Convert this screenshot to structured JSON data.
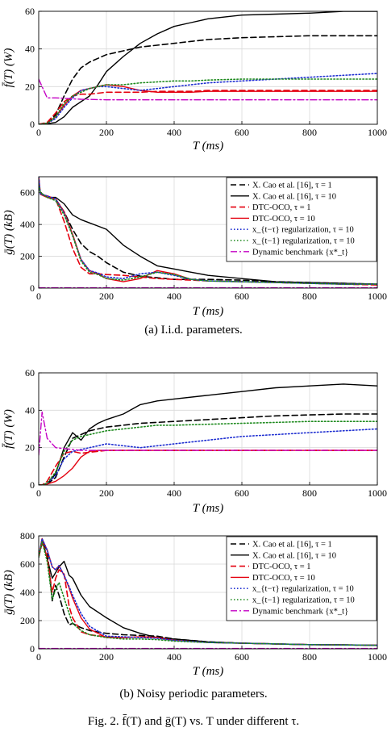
{
  "figure": {
    "sub_caption_a": "(a) I.i.d. parameters.",
    "sub_caption_b": "(b) Noisy periodic parameters.",
    "caption": "Fig. 2.  f̄(T) and ḡ(T) vs. T under different τ."
  },
  "legend_labels": [
    "X. Cao et al. [16], τ = 1",
    "X. Cao et al. [16], τ = 10",
    "DTC-OCO, τ = 1",
    "DTC-OCO, τ = 10",
    "x_{t−τ} regularization, τ = 10",
    "x_{t−1} regularization, τ = 10",
    "Dynamic benchmark {x*_t}"
  ],
  "series_styles": [
    {
      "color": "#000000",
      "dash": "7,4",
      "width": 1.6
    },
    {
      "color": "#000000",
      "dash": "",
      "width": 1.4
    },
    {
      "color": "#e4000f",
      "dash": "7,4",
      "width": 1.6
    },
    {
      "color": "#e4000f",
      "dash": "",
      "width": 1.4
    },
    {
      "color": "#1f2fd1",
      "dash": "1.5,2.5",
      "width": 1.6
    },
    {
      "color": "#1e8a1e",
      "dash": "1.5,2.5",
      "width": 1.6
    },
    {
      "color": "#c400c4",
      "dash": "8,3,2,3",
      "width": 1.4
    }
  ],
  "chart_data": [
    {
      "id": "a-f",
      "type": "line",
      "xlabel": "T (ms)",
      "ylabel": "f̄(T) (W)",
      "xlim": [
        0,
        1000
      ],
      "ylim": [
        0,
        60
      ],
      "xticks": [
        "0",
        "200",
        "400",
        "600",
        "800",
        "1000"
      ],
      "yticks": [
        "0",
        "20",
        "40",
        "60"
      ],
      "grid": true,
      "legend": "none",
      "x": [
        0,
        25,
        50,
        75,
        100,
        125,
        150,
        175,
        200,
        250,
        300,
        350,
        400,
        450,
        500,
        600,
        700,
        800,
        900,
        1000
      ],
      "series": [
        {
          "values": [
            0,
            0.5,
            5,
            15,
            24,
            30,
            33,
            35,
            37,
            39,
            41,
            42,
            43,
            44,
            45,
            46,
            46.5,
            47,
            47,
            47
          ]
        },
        {
          "values": [
            0,
            0.3,
            1,
            4,
            9,
            12,
            15,
            21,
            28,
            36,
            43,
            48,
            52,
            54,
            56,
            58,
            58.5,
            59,
            60,
            60
          ]
        },
        {
          "values": [
            0,
            1,
            6,
            12,
            15,
            16,
            16,
            16.5,
            17,
            17,
            17,
            17.5,
            17.5,
            17.5,
            18,
            18,
            18,
            18,
            18,
            18
          ]
        },
        {
          "values": [
            0,
            0.5,
            4,
            10,
            15,
            18,
            19,
            20,
            21,
            20,
            18,
            17,
            17,
            17,
            17.5,
            17.5,
            17.5,
            17.5,
            17.5,
            17.5
          ]
        },
        {
          "values": [
            0,
            0.5,
            3,
            9,
            14,
            18,
            19,
            20,
            20,
            19,
            18,
            19,
            20,
            21,
            22,
            23,
            24,
            25,
            26,
            27
          ]
        },
        {
          "values": [
            0,
            0.5,
            4,
            11,
            15,
            17,
            19,
            20,
            21,
            21,
            22,
            22.5,
            23,
            23,
            23.5,
            24,
            24,
            24,
            24,
            24
          ]
        },
        {
          "values": [
            24,
            14,
            14,
            13.8,
            13.5,
            13.3,
            13.2,
            13.1,
            13,
            13,
            13,
            13,
            13,
            13,
            13,
            13,
            13,
            13,
            13,
            13
          ]
        }
      ]
    },
    {
      "id": "a-g",
      "type": "line",
      "xlabel": "T (ms)",
      "ylabel": "ḡ(T) (kB)",
      "xlim": [
        0,
        1000
      ],
      "ylim": [
        0,
        700
      ],
      "xticks": [
        "0",
        "200",
        "400",
        "600",
        "800",
        "1000"
      ],
      "yticks": [
        "0",
        "200",
        "400",
        "600"
      ],
      "grid": true,
      "legend": "top-right",
      "x": [
        0,
        5,
        25,
        50,
        75,
        100,
        125,
        150,
        175,
        200,
        250,
        300,
        350,
        400,
        450,
        500,
        600,
        700,
        800,
        900,
        1000
      ],
      "series": [
        {
          "values": [
            650,
            600,
            570,
            560,
            480,
            370,
            280,
            230,
            200,
            160,
            100,
            75,
            65,
            55,
            55,
            55,
            50,
            40,
            35,
            30,
            25
          ]
        },
        {
          "values": [
            650,
            600,
            570,
            570,
            530,
            460,
            430,
            410,
            390,
            370,
            270,
            200,
            140,
            120,
            100,
            80,
            60,
            40,
            35,
            30,
            25
          ]
        },
        {
          "values": [
            700,
            590,
            570,
            560,
            420,
            250,
            130,
            90,
            90,
            85,
            80,
            70,
            60,
            55,
            50,
            45,
            40,
            35,
            30,
            25,
            20
          ]
        },
        {
          "values": [
            700,
            590,
            580,
            560,
            480,
            340,
            180,
            110,
            90,
            60,
            40,
            60,
            110,
            90,
            55,
            45,
            40,
            35,
            30,
            25,
            25
          ]
        },
        {
          "values": [
            700,
            590,
            580,
            560,
            470,
            330,
            180,
            110,
            95,
            70,
            60,
            90,
            100,
            80,
            55,
            45,
            40,
            35,
            30,
            25,
            25
          ]
        },
        {
          "values": [
            650,
            600,
            570,
            550,
            460,
            330,
            170,
            100,
            85,
            60,
            50,
            70,
            100,
            85,
            55,
            45,
            40,
            35,
            30,
            25,
            25
          ]
        },
        {
          "values": [
            2,
            2,
            2,
            2,
            2,
            2,
            2,
            2,
            2,
            2,
            2,
            2,
            2,
            2,
            2,
            2,
            2,
            2,
            2,
            2,
            2
          ]
        }
      ]
    },
    {
      "id": "b-f",
      "type": "line",
      "xlabel": "T (ms)",
      "ylabel": "f̄(T) (W)",
      "xlim": [
        0,
        1000
      ],
      "ylim": [
        0,
        60
      ],
      "xticks": [
        "0",
        "200",
        "400",
        "600",
        "800",
        "1000"
      ],
      "yticks": [
        "0",
        "20",
        "40",
        "60"
      ],
      "grid": true,
      "legend": "none",
      "x": [
        0,
        10,
        25,
        50,
        75,
        100,
        125,
        150,
        175,
        200,
        250,
        300,
        350,
        400,
        500,
        600,
        700,
        800,
        900,
        1000
      ],
      "series": [
        {
          "values": [
            0,
            0,
            0.5,
            4,
            15,
            25,
            27,
            29,
            30,
            31,
            32,
            33,
            33.5,
            34,
            35,
            36,
            37,
            37.5,
            38,
            38
          ]
        },
        {
          "values": [
            0,
            0,
            0.5,
            6,
            20,
            28,
            24,
            30,
            33,
            35,
            38,
            43,
            45,
            46,
            48,
            50,
            52,
            53,
            54,
            53
          ]
        },
        {
          "values": [
            0,
            0,
            2,
            10,
            17,
            18,
            17,
            17.5,
            18,
            18.5,
            18.5,
            18.5,
            18.5,
            18.5,
            18.5,
            18.5,
            18.5,
            18.5,
            18.5,
            18.5
          ]
        },
        {
          "values": [
            0,
            0,
            0.5,
            2,
            5,
            9,
            15,
            18,
            18.5,
            18.5,
            18.5,
            18.5,
            18.5,
            18.5,
            18.5,
            18.5,
            18.5,
            18.5,
            18.5,
            18.5
          ]
        },
        {
          "values": [
            0,
            0,
            1,
            5,
            14,
            18,
            19,
            20,
            21,
            22,
            21,
            20,
            21,
            22,
            24,
            26,
            27,
            28,
            29,
            30
          ]
        },
        {
          "values": [
            0,
            0,
            1,
            7,
            18,
            24,
            26,
            27,
            28,
            29,
            30,
            31,
            32,
            32,
            32.5,
            33,
            33.5,
            34,
            34,
            34
          ]
        },
        {
          "values": [
            16,
            39,
            25,
            20,
            19.5,
            19,
            18.5,
            18.5,
            18.5,
            18.5,
            18.5,
            18.5,
            18.5,
            18.5,
            18.5,
            18.5,
            18.5,
            18.5,
            18.5,
            18.5
          ]
        }
      ]
    },
    {
      "id": "b-g",
      "type": "line",
      "xlabel": "T (ms)",
      "ylabel": "ḡ(T) (kB)",
      "xlim": [
        0,
        1000
      ],
      "ylim": [
        0,
        800
      ],
      "xticks": [
        "0",
        "200",
        "400",
        "600",
        "800",
        "1000"
      ],
      "yticks": [
        "0",
        "200",
        "400",
        "600",
        "800"
      ],
      "grid": true,
      "legend": "top-right",
      "x": [
        0,
        10,
        25,
        40,
        50,
        60,
        75,
        90,
        100,
        125,
        150,
        200,
        250,
        300,
        350,
        400,
        500,
        600,
        700,
        800,
        900,
        1000
      ],
      "series": [
        {
          "values": [
            650,
            750,
            700,
            340,
            450,
            380,
            250,
            170,
            180,
            150,
            130,
            110,
            100,
            95,
            90,
            70,
            50,
            40,
            35,
            30,
            28,
            25
          ]
        },
        {
          "values": [
            650,
            780,
            640,
            500,
            540,
            580,
            620,
            520,
            500,
            380,
            300,
            220,
            150,
            110,
            80,
            70,
            50,
            40,
            35,
            30,
            28,
            25
          ]
        },
        {
          "values": [
            650,
            760,
            650,
            400,
            500,
            560,
            530,
            300,
            220,
            120,
            100,
            85,
            80,
            85,
            80,
            60,
            45,
            40,
            35,
            30,
            28,
            25
          ]
        },
        {
          "values": [
            650,
            780,
            700,
            580,
            560,
            590,
            520,
            430,
            360,
            220,
            140,
            80,
            80,
            85,
            80,
            60,
            45,
            40,
            35,
            30,
            28,
            25
          ]
        },
        {
          "values": [
            650,
            780,
            700,
            580,
            560,
            590,
            520,
            440,
            380,
            250,
            160,
            90,
            85,
            80,
            75,
            60,
            45,
            40,
            35,
            30,
            28,
            25
          ]
        },
        {
          "values": [
            650,
            760,
            620,
            350,
            420,
            470,
            360,
            250,
            180,
            130,
            100,
            80,
            70,
            70,
            65,
            55,
            45,
            40,
            35,
            30,
            28,
            25
          ]
        },
        {
          "values": [
            2,
            2,
            2,
            2,
            2,
            2,
            2,
            2,
            2,
            2,
            2,
            2,
            2,
            2,
            2,
            2,
            2,
            2,
            2,
            2,
            2,
            2
          ]
        }
      ]
    }
  ]
}
